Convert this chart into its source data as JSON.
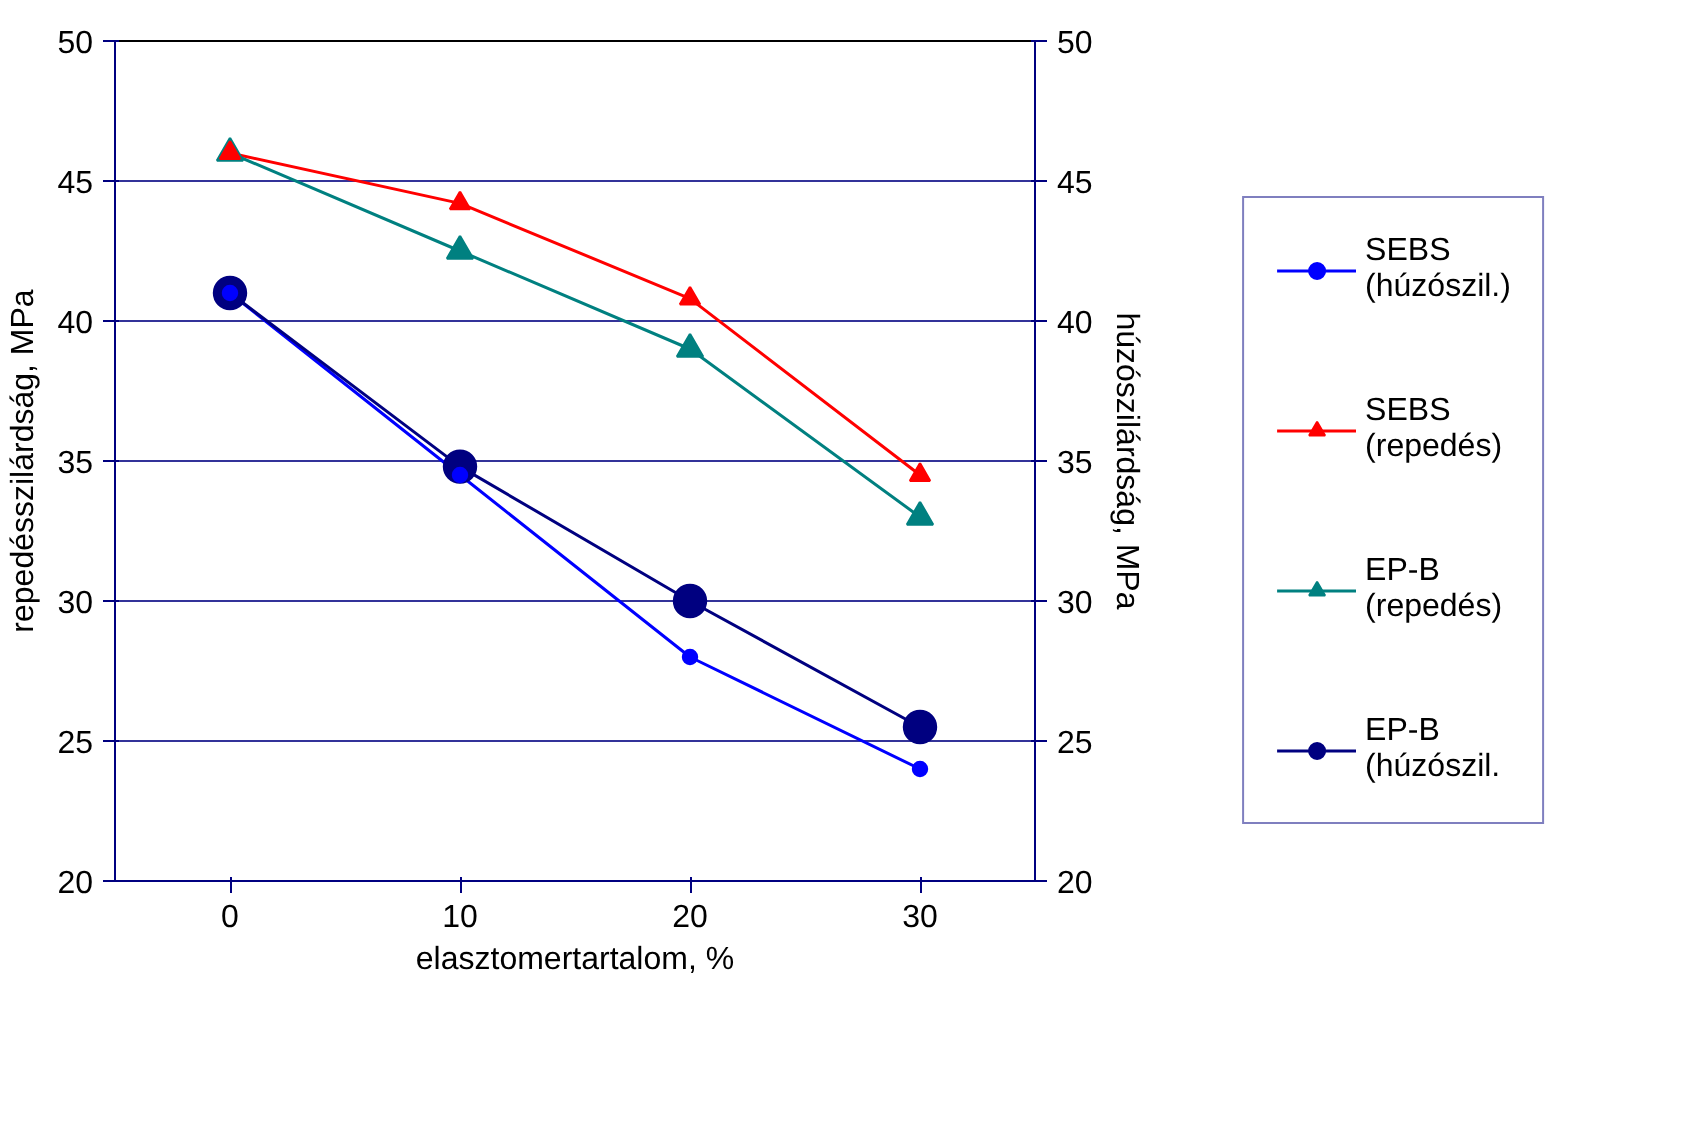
{
  "chart_data": {
    "type": "line",
    "xlabel": "elasztomertartalom, %",
    "ylabel": "repedésszilárdság, MPa",
    "y2label": "húzószilárdság, MPa",
    "categories": [
      "0",
      "10",
      "20",
      "30"
    ],
    "series": [
      {
        "name": "SEBS\n(húzószil.)",
        "color": "#0000ff",
        "values": [
          41,
          34.5,
          28,
          24
        ],
        "marker": "circle"
      },
      {
        "name": "SEBS\n(repedés)",
        "color": "#ff0000",
        "values": [
          46,
          44.2,
          40.8,
          34.5
        ],
        "marker": "triangle"
      },
      {
        "name": "EP-B\n(repedés)",
        "color": "#008080",
        "values": [
          46,
          42.5,
          39,
          33
        ],
        "marker": "triangle"
      },
      {
        "name": "EP-B\n(húzószil.",
        "color": "#000080",
        "values": [
          41,
          34.8,
          30,
          25.5
        ],
        "marker": "circle"
      }
    ],
    "ylim": [
      20,
      50
    ],
    "yticks": [
      20,
      25,
      30,
      35,
      40,
      45,
      50
    ],
    "y2lim": [
      20,
      50
    ],
    "y2ticks": [
      20,
      25,
      30,
      35,
      40,
      45,
      50
    ],
    "grid": "y",
    "legend": "right",
    "line_style": "solid"
  }
}
